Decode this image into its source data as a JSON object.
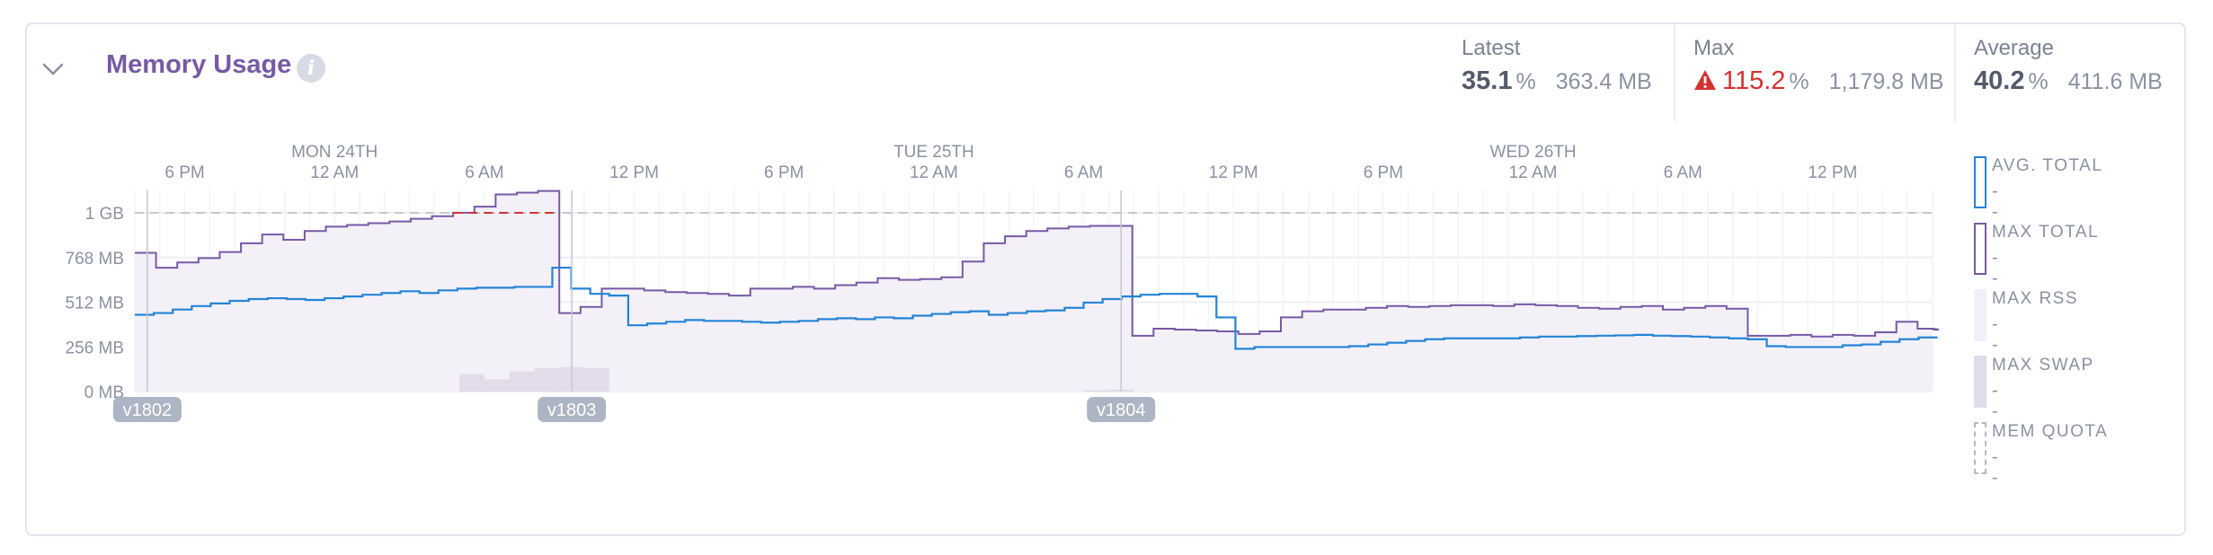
{
  "panel": {
    "title": "Memory Usage",
    "info_icon": "info-icon",
    "collapse_icon": "chevron-down-icon"
  },
  "stats": {
    "latest": {
      "label": "Latest",
      "percent": "35.1",
      "unit": "%",
      "mb": "363.4 MB"
    },
    "max": {
      "label": "Max",
      "percent": "115.2",
      "unit": "%",
      "mb": "1,179.8 MB",
      "alert_icon": "warning-icon",
      "alert_color": "#d43131"
    },
    "average": {
      "label": "Average",
      "percent": "40.2",
      "unit": "%",
      "mb": "411.6 MB"
    }
  },
  "legend": [
    {
      "label": "AVG. TOTAL",
      "value": "--",
      "color": "#2484d6",
      "style": "outline"
    },
    {
      "label": "MAX TOTAL",
      "value": "--",
      "color": "#7759a5",
      "style": "outline"
    },
    {
      "label": "MAX RSS",
      "value": "--",
      "color": "#f1eff7",
      "style": "fill"
    },
    {
      "label": "MAX SWAP",
      "value": "--",
      "color": "#e2dbea",
      "style": "fill"
    },
    {
      "label": "MEM QUOTA",
      "value": "--",
      "color": "#b5b9c4",
      "style": "dashed"
    }
  ],
  "chart_data": {
    "type": "line",
    "x_unit": "hours since the first bucket shown (first bucket ≈ 4:30 PM Sun 23rd)",
    "xlim": [
      0,
      72
    ],
    "ylim": [
      0,
      1153
    ],
    "y_unit": "MB",
    "y_ticks": [
      {
        "value": 0,
        "label": "0 MB"
      },
      {
        "value": 256,
        "label": "256 MB"
      },
      {
        "value": 512,
        "label": "512 MB"
      },
      {
        "value": 768,
        "label": "768 MB"
      },
      {
        "value": 1024,
        "label": "1 GB"
      }
    ],
    "x_time_ticks": [
      {
        "hour": 2,
        "label": "6 PM"
      },
      {
        "hour": 8,
        "label": "12 AM"
      },
      {
        "hour": 14,
        "label": "6 AM"
      },
      {
        "hour": 20,
        "label": "12 PM"
      },
      {
        "hour": 26,
        "label": "6 PM"
      },
      {
        "hour": 32,
        "label": "12 AM"
      },
      {
        "hour": 38,
        "label": "6 AM"
      },
      {
        "hour": 44,
        "label": "12 PM"
      },
      {
        "hour": 50,
        "label": "6 PM"
      },
      {
        "hour": 56,
        "label": "12 AM"
      },
      {
        "hour": 62,
        "label": "6 AM"
      },
      {
        "hour": 68,
        "label": "12 PM"
      }
    ],
    "x_day_labels": [
      {
        "hour": 8,
        "label": "MON 24TH"
      },
      {
        "hour": 32,
        "label": "TUE 25TH"
      },
      {
        "hour": 56,
        "label": "WED 26TH"
      }
    ],
    "mem_quota": 1024,
    "releases": [
      {
        "hour": 0.5,
        "label": "v1802"
      },
      {
        "hour": 17.5,
        "label": "v1803"
      },
      {
        "hour": 39.5,
        "label": "v1804"
      }
    ],
    "series": [
      {
        "name": "MAX TOTAL",
        "color": "#7759a5",
        "values": [
          795,
          710,
          740,
          765,
          800,
          850,
          900,
          870,
          920,
          945,
          955,
          965,
          975,
          990,
          1005,
          1025,
          1060,
          1130,
          1140,
          1150,
          450,
          485,
          590,
          590,
          580,
          570,
          565,
          560,
          550,
          590,
          590,
          600,
          590,
          610,
          625,
          650,
          640,
          645,
          655,
          745,
          850,
          890,
          920,
          935,
          945,
          950,
          950,
          320,
          360,
          355,
          350,
          345,
          330,
          345,
          425,
          460,
          470,
          470,
          480,
          490,
          485,
          490,
          495,
          495,
          490,
          500,
          495,
          490,
          480,
          475,
          485,
          490,
          470,
          480,
          490,
          475,
          320,
          320,
          325,
          315,
          325,
          320,
          340,
          400,
          360,
          355
        ],
        "step_width": 0.85
      },
      {
        "name": "AVG. TOTAL",
        "color": "#2484d6",
        "values": [
          440,
          450,
          470,
          490,
          505,
          520,
          530,
          535,
          530,
          525,
          535,
          545,
          555,
          565,
          575,
          565,
          580,
          590,
          595,
          595,
          600,
          600,
          710,
          590,
          560,
          550,
          380,
          390,
          400,
          410,
          405,
          405,
          400,
          395,
          400,
          405,
          415,
          420,
          415,
          425,
          420,
          435,
          445,
          455,
          460,
          440,
          450,
          460,
          465,
          480,
          510,
          530,
          545,
          555,
          560,
          560,
          545,
          425,
          245,
          255,
          255,
          255,
          255,
          255,
          260,
          270,
          280,
          290,
          300,
          305,
          305,
          305,
          305,
          310,
          315,
          315,
          318,
          320,
          322,
          325,
          320,
          318,
          315,
          310,
          305,
          300,
          260,
          255,
          255,
          255,
          265,
          270,
          285,
          300,
          310,
          310
        ],
        "step_width": 0.76
      },
      {
        "name": "MAX SWAP",
        "color": "#e2dbea",
        "values": [
          {
            "hour": 13,
            "value": 100
          },
          {
            "hour": 14,
            "value": 70
          },
          {
            "hour": 15,
            "value": 115
          },
          {
            "hour": 16,
            "value": 135
          },
          {
            "hour": 17,
            "value": 140
          },
          {
            "hour": 18,
            "value": 135
          },
          {
            "hour": 38,
            "value": 8
          },
          {
            "hour": 39,
            "value": 12
          }
        ]
      }
    ]
  }
}
